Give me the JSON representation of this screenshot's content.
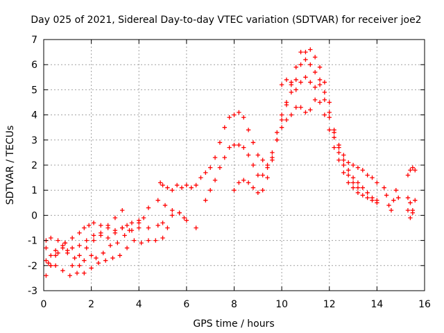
{
  "chart_data": {
    "type": "scatter",
    "title": "Day 025 of 2021, Sidereal Day-to-day VTEC variation (SDTVAR) for receiver joe2",
    "xlabel": "GPS time / hours",
    "ylabel": "SDTVAR / TECUs",
    "xlim": [
      0,
      16
    ],
    "ylim": [
      -3,
      7
    ],
    "xticks": [
      "0",
      "2",
      "4",
      "6",
      "8",
      "10",
      "12",
      "14",
      "16"
    ],
    "yticks": [
      "-3",
      "-2",
      "-1",
      "0",
      "1",
      "2",
      "3",
      "4",
      "5",
      "6",
      "7"
    ],
    "grid": true,
    "marker": "+",
    "color": "#ff0000",
    "series": [
      {
        "points": [
          [
            0.1,
            -1.3
          ],
          [
            0.3,
            -2.0
          ],
          [
            0.5,
            -1.6
          ],
          [
            0.8,
            -1.2
          ],
          [
            1.0,
            -1.5
          ],
          [
            1.2,
            -2.0
          ],
          [
            1.5,
            -1.6
          ],
          [
            1.8,
            -1.3
          ],
          [
            2.1,
            -1.0
          ],
          [
            2.4,
            -0.8
          ],
          [
            2.7,
            -0.4
          ],
          [
            3.0,
            -0.1
          ],
          [
            3.3,
            0.2
          ]
        ]
      },
      {
        "points": [
          [
            0.1,
            -2.4
          ],
          [
            0.3,
            -2.0
          ],
          [
            0.6,
            -1.5
          ],
          [
            0.9,
            -1.1
          ],
          [
            1.2,
            -1.3
          ],
          [
            1.5,
            -1.2
          ],
          [
            1.8,
            -1.0
          ],
          [
            2.1,
            -0.8
          ],
          [
            2.4,
            -0.7
          ],
          [
            2.7,
            -0.9
          ],
          [
            3.0,
            -0.7
          ],
          [
            3.3,
            -0.5
          ],
          [
            3.6,
            -0.6
          ],
          [
            4.0,
            -0.3
          ],
          [
            4.4,
            0.3
          ],
          [
            4.8,
            0.6
          ],
          [
            5.1,
            0.4
          ],
          [
            5.4,
            0.2
          ],
          [
            5.7,
            0.1
          ],
          [
            6.0,
            -0.2
          ],
          [
            6.4,
            -0.5
          ]
        ]
      },
      {
        "points": [
          [
            0.1,
            -1.8
          ],
          [
            0.3,
            -1.6
          ],
          [
            0.5,
            -2.0
          ],
          [
            0.8,
            -2.2
          ],
          [
            1.1,
            -2.4
          ],
          [
            1.4,
            -2.3
          ],
          [
            1.7,
            -2.3
          ],
          [
            2.0,
            -2.1
          ],
          [
            2.3,
            -1.9
          ],
          [
            2.6,
            -1.8
          ],
          [
            2.9,
            -1.7
          ],
          [
            3.2,
            -1.6
          ],
          [
            3.5,
            -1.3
          ],
          [
            3.8,
            -1.0
          ],
          [
            4.1,
            -1.1
          ],
          [
            4.4,
            -1.0
          ],
          [
            4.7,
            -1.0
          ],
          [
            5.0,
            -0.9
          ],
          [
            5.2,
            -0.5
          ],
          [
            5.4,
            0.0
          ],
          [
            5.7,
            0.1
          ],
          [
            5.9,
            -0.1
          ]
        ]
      },
      {
        "points": [
          [
            0.2,
            -1.9
          ],
          [
            0.5,
            -1.4
          ],
          [
            0.8,
            -1.3
          ],
          [
            1.0,
            -1.4
          ],
          [
            1.3,
            -1.7
          ],
          [
            1.5,
            -2.0
          ],
          [
            1.7,
            -1.8
          ],
          [
            2.0,
            -1.6
          ],
          [
            2.2,
            -1.7
          ],
          [
            2.5,
            -1.5
          ],
          [
            2.8,
            -1.2
          ],
          [
            3.1,
            -1.1
          ],
          [
            3.4,
            -0.8
          ],
          [
            3.7,
            -0.6
          ],
          [
            4.0,
            -0.5
          ],
          [
            4.4,
            -0.5
          ],
          [
            4.8,
            -0.4
          ],
          [
            5.0,
            -0.3
          ]
        ]
      },
      {
        "points": [
          [
            0.1,
            -1.0
          ],
          [
            0.3,
            -0.9
          ],
          [
            0.6,
            -1.0
          ],
          [
            0.9,
            -1.1
          ],
          [
            1.2,
            -0.9
          ],
          [
            1.5,
            -0.7
          ],
          [
            1.7,
            -0.5
          ],
          [
            1.9,
            -0.4
          ],
          [
            2.1,
            -0.3
          ],
          [
            2.4,
            -0.4
          ],
          [
            2.7,
            -0.5
          ],
          [
            3.0,
            -0.6
          ],
          [
            3.3,
            -0.5
          ],
          [
            3.5,
            -0.4
          ],
          [
            3.7,
            -0.3
          ],
          [
            4.0,
            -0.2
          ],
          [
            4.2,
            -0.1
          ]
        ]
      },
      {
        "points": [
          [
            4.9,
            1.3
          ],
          [
            5.0,
            1.2
          ],
          [
            5.2,
            1.1
          ],
          [
            5.4,
            1.0
          ],
          [
            5.6,
            1.2
          ],
          [
            5.8,
            1.1
          ],
          [
            6.0,
            1.2
          ],
          [
            6.2,
            1.1
          ],
          [
            6.4,
            1.2
          ],
          [
            6.6,
            1.5
          ],
          [
            6.8,
            1.7
          ],
          [
            7.0,
            1.9
          ],
          [
            7.2,
            2.3
          ],
          [
            7.4,
            2.9
          ],
          [
            7.6,
            3.5
          ],
          [
            7.8,
            3.9
          ],
          [
            8.0,
            4.0
          ],
          [
            8.2,
            4.1
          ],
          [
            8.4,
            3.9
          ],
          [
            8.6,
            3.4
          ],
          [
            8.8,
            2.9
          ],
          [
            9.0,
            2.4
          ],
          [
            9.2,
            2.2
          ],
          [
            9.4,
            2.0
          ],
          [
            9.6,
            2.5
          ],
          [
            9.8,
            3.3
          ],
          [
            10.0,
            4.0
          ],
          [
            10.2,
            4.5
          ],
          [
            10.4,
            5.3
          ],
          [
            10.6,
            5.9
          ],
          [
            10.8,
            6.5
          ],
          [
            11.0,
            6.5
          ],
          [
            11.2,
            6.6
          ],
          [
            11.4,
            6.3
          ],
          [
            11.6,
            5.9
          ],
          [
            11.8,
            5.3
          ],
          [
            12.0,
            4.5
          ],
          [
            12.2,
            3.4
          ],
          [
            12.4,
            2.8
          ],
          [
            12.6,
            2.4
          ],
          [
            12.8,
            2.1
          ],
          [
            13.0,
            2.0
          ],
          [
            13.2,
            1.9
          ],
          [
            13.4,
            1.8
          ],
          [
            13.6,
            1.6
          ],
          [
            13.8,
            1.5
          ],
          [
            14.0,
            1.3
          ]
        ]
      },
      {
        "points": [
          [
            6.8,
            0.6
          ],
          [
            7.0,
            1.0
          ],
          [
            7.2,
            1.4
          ],
          [
            7.4,
            1.9
          ],
          [
            7.6,
            2.3
          ],
          [
            7.8,
            2.7
          ],
          [
            8.0,
            2.8
          ],
          [
            8.2,
            2.8
          ],
          [
            8.4,
            2.7
          ],
          [
            8.6,
            2.4
          ],
          [
            8.8,
            2.0
          ],
          [
            9.0,
            1.6
          ],
          [
            9.2,
            1.6
          ],
          [
            9.4,
            1.9
          ],
          [
            9.6,
            2.3
          ],
          [
            9.8,
            3.0
          ],
          [
            10.0,
            3.8
          ],
          [
            10.2,
            4.4
          ],
          [
            10.4,
            4.9
          ],
          [
            10.6,
            5.4
          ],
          [
            10.8,
            6.0
          ],
          [
            11.0,
            6.2
          ],
          [
            11.2,
            6.0
          ],
          [
            11.4,
            5.7
          ],
          [
            11.6,
            5.4
          ],
          [
            11.8,
            4.9
          ],
          [
            12.0,
            4.1
          ],
          [
            12.2,
            3.3
          ],
          [
            12.4,
            2.7
          ],
          [
            12.6,
            2.2
          ],
          [
            12.8,
            1.8
          ],
          [
            13.0,
            1.5
          ],
          [
            13.2,
            1.3
          ],
          [
            13.4,
            1.1
          ],
          [
            13.6,
            0.9
          ],
          [
            13.8,
            0.7
          ],
          [
            14.0,
            0.6
          ]
        ]
      },
      {
        "points": [
          [
            8.0,
            1.0
          ],
          [
            8.2,
            1.3
          ],
          [
            8.4,
            1.4
          ],
          [
            8.6,
            1.3
          ],
          [
            8.8,
            1.1
          ],
          [
            9.0,
            0.9
          ],
          [
            9.2,
            1.0
          ],
          [
            9.4,
            1.5
          ],
          [
            9.6,
            2.2
          ],
          [
            9.8,
            3.0
          ],
          [
            10.0,
            3.5
          ],
          [
            10.2,
            3.8
          ],
          [
            10.4,
            4.0
          ],
          [
            10.6,
            4.3
          ],
          [
            10.8,
            4.3
          ],
          [
            11.0,
            4.1
          ],
          [
            11.2,
            4.2
          ],
          [
            11.4,
            4.6
          ],
          [
            11.6,
            4.5
          ],
          [
            11.8,
            4.0
          ],
          [
            12.0,
            3.4
          ],
          [
            12.2,
            2.7
          ],
          [
            12.4,
            2.2
          ],
          [
            12.6,
            1.7
          ],
          [
            12.8,
            1.3
          ],
          [
            13.0,
            1.1
          ],
          [
            13.2,
            0.9
          ],
          [
            13.4,
            0.8
          ],
          [
            13.6,
            0.7
          ],
          [
            13.8,
            0.6
          ],
          [
            14.0,
            0.5
          ]
        ]
      },
      {
        "points": [
          [
            10.0,
            5.2
          ],
          [
            10.2,
            5.4
          ],
          [
            10.4,
            5.2
          ],
          [
            10.6,
            5.0
          ],
          [
            10.8,
            5.3
          ],
          [
            11.0,
            5.5
          ],
          [
            11.2,
            5.3
          ],
          [
            11.4,
            5.1
          ],
          [
            11.6,
            5.2
          ],
          [
            11.8,
            4.6
          ],
          [
            12.0,
            3.9
          ],
          [
            12.2,
            3.1
          ],
          [
            12.4,
            2.5
          ],
          [
            12.6,
            2.0
          ],
          [
            12.8,
            1.6
          ],
          [
            13.0,
            1.3
          ],
          [
            13.2,
            1.1
          ]
        ]
      },
      {
        "points": [
          [
            14.3,
            1.1
          ],
          [
            14.4,
            0.8
          ],
          [
            14.5,
            0.4
          ],
          [
            14.6,
            0.2
          ],
          [
            14.7,
            0.6
          ],
          [
            14.8,
            1.0
          ],
          [
            14.9,
            0.7
          ],
          [
            15.3,
            1.6
          ],
          [
            15.4,
            1.8
          ],
          [
            15.5,
            1.9
          ],
          [
            15.6,
            1.8
          ],
          [
            15.3,
            0.7
          ],
          [
            15.4,
            0.5
          ],
          [
            15.5,
            0.2
          ],
          [
            15.6,
            0.6
          ],
          [
            15.3,
            0.2
          ],
          [
            15.4,
            -0.1
          ],
          [
            15.5,
            0.1
          ]
        ]
      }
    ]
  }
}
